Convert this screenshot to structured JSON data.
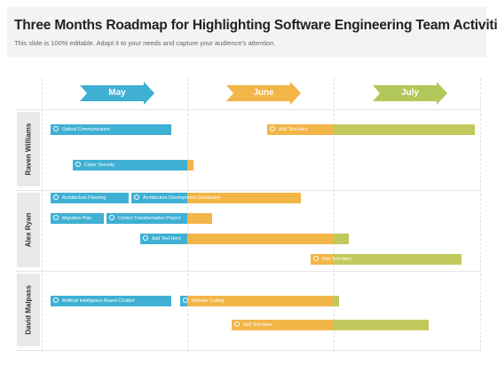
{
  "title": "Three Months Roadmap for Highlighting Software Engineering Team Activities",
  "subtitle": "This slide is 100% editable. Adapt it to your needs and capture your audience's attention.",
  "colors": {
    "blue": "#3fb0d3",
    "orange": "#f2b547",
    "green": "#c2c95c",
    "label_bg": "#e9e9e9"
  },
  "months": [
    {
      "label": "May",
      "color": "#3fb0d3"
    },
    {
      "label": "June",
      "color": "#f2b547"
    },
    {
      "label": "July",
      "color": "#b3c85a"
    }
  ],
  "rows": [
    {
      "label": "Raven Williams"
    },
    {
      "label": "Alex Ryan"
    },
    {
      "label": "David Malpass"
    }
  ],
  "bars": [
    {
      "label": "Optical Communication"
    },
    {
      "label": "Add Text Here"
    },
    {
      "label": "Cyber Security"
    },
    {
      "label": "Architecture Planning"
    },
    {
      "label": "Architecture Development (Hardware)"
    },
    {
      "label": "Migration Plan"
    },
    {
      "label": "Control Transformation Project"
    },
    {
      "label": "Add Text Here"
    },
    {
      "label": "Add Text Here"
    },
    {
      "label": "Artificial Intelligence Based Chatbot"
    },
    {
      "label": "Website Coding"
    },
    {
      "label": "Add Text Here"
    }
  ]
}
